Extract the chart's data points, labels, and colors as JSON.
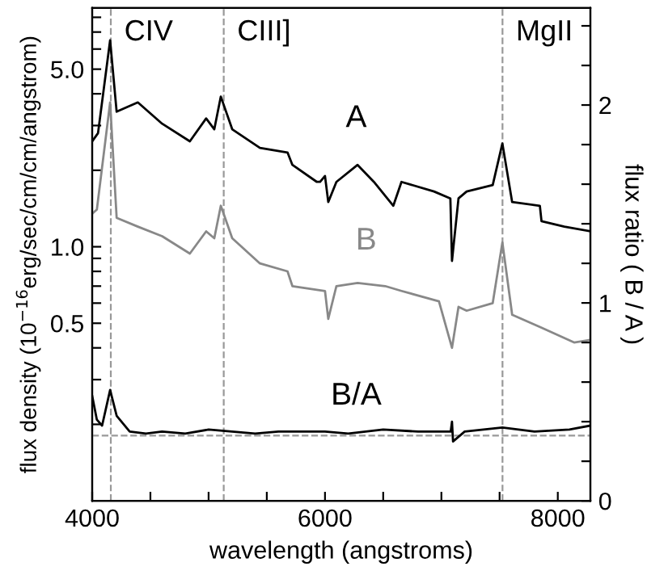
{
  "chart_data": {
    "type": "line",
    "xlabel": "wavelength (angstroms)",
    "ylabel": "flux density (10$^{−16}$erg/sec/cm/cm/angstrom)",
    "y2label": "flux ratio ( B / A )",
    "log": "y",
    "grid": false,
    "legend": false,
    "marker": "none",
    "line_style": "solid",
    "xlim": [
      4000,
      8280
    ],
    "xticks": [
      4000,
      {
        "value": 4500,
        "label": null
      },
      {
        "value": 5000,
        "label": null
      },
      {
        "value": 5500,
        "label": null
      },
      6000,
      {
        "value": 6500,
        "label": null
      },
      {
        "value": 7000,
        "label": null
      },
      {
        "value": 7500,
        "label": null
      },
      8000
    ],
    "ylim": [
      0.1,
      8.7
    ],
    "yticks": [
      {
        "value": 0.2,
        "label": null
      },
      {
        "value": 0.3,
        "label": null
      },
      {
        "value": 0.4,
        "label": null
      },
      {
        "value": 0.5,
        "label": "0.5"
      },
      {
        "value": 0.6,
        "label": null
      },
      {
        "value": 0.7,
        "label": null
      },
      {
        "value": 0.8,
        "label": null
      },
      {
        "value": 0.9,
        "label": null
      },
      {
        "value": 1,
        "label": "1.0"
      },
      {
        "value": 2,
        "label": null
      },
      {
        "value": 3,
        "label": null
      },
      {
        "value": 4,
        "label": null
      },
      {
        "value": 5,
        "label": "5.0"
      },
      {
        "value": 6,
        "label": null
      },
      {
        "value": 7,
        "label": null
      },
      {
        "value": 8,
        "label": null
      }
    ],
    "y2lim": [
      0,
      2.49
    ],
    "y2ticks": [
      0,
      {
        "value": 0.2,
        "label": null
      },
      {
        "value": 0.4,
        "label": null
      },
      {
        "value": 0.6,
        "label": null
      },
      {
        "value": 0.8,
        "label": null
      },
      1,
      {
        "value": 1.2,
        "label": null
      },
      {
        "value": 1.4,
        "label": null
      },
      {
        "value": 1.6,
        "label": null
      },
      {
        "value": 1.8,
        "label": null
      },
      2,
      {
        "value": 2.2,
        "label": null
      },
      {
        "value": 2.4,
        "label": null
      }
    ],
    "series": [
      {
        "name": "A",
        "color": "#000000",
        "x": [
          4000,
          4050,
          4154,
          4210,
          4392,
          4601,
          4839,
          4979,
          5049,
          5105,
          5203,
          5441,
          5678,
          5720,
          5930,
          5958,
          6000,
          6028,
          6098,
          6280,
          6420,
          6587,
          6657,
          6937,
          7077,
          7091,
          7147,
          7217,
          7441,
          7524,
          7608,
          7846,
          7860,
          8056,
          8280
        ],
        "values": [
          2.6,
          2.8,
          6.5,
          3.4,
          3.7,
          3.05,
          2.6,
          3.2,
          2.9,
          3.9,
          2.9,
          2.45,
          2.35,
          2.1,
          1.8,
          1.8,
          1.9,
          1.5,
          1.8,
          2.1,
          1.8,
          1.45,
          1.8,
          1.65,
          1.55,
          0.88,
          1.55,
          1.65,
          1.75,
          2.55,
          1.5,
          1.45,
          1.26,
          1.2,
          1.15
        ]
      },
      {
        "name": "B",
        "color": "#888888",
        "x": [
          4000,
          4040,
          4154,
          4210,
          4392,
          4601,
          4839,
          4979,
          5049,
          5105,
          5203,
          5441,
          5678,
          5720,
          6000,
          6028,
          6098,
          6280,
          6517,
          6657,
          6979,
          7091,
          7147,
          7217,
          7441,
          7524,
          7608,
          7860,
          8140,
          8280
        ],
        "values": [
          1.35,
          1.4,
          3.7,
          1.3,
          1.2,
          1.1,
          0.94,
          1.15,
          1.08,
          1.45,
          1.08,
          0.86,
          0.8,
          0.7,
          0.67,
          0.52,
          0.7,
          0.72,
          0.7,
          0.67,
          0.61,
          0.4,
          0.58,
          0.56,
          0.6,
          1.04,
          0.54,
          0.48,
          0.42,
          0.43
        ]
      },
      {
        "name": "B/A",
        "color": "#000000",
        "axis": "y2",
        "x": [
          4000,
          4040,
          4085,
          4154,
          4210,
          4322,
          4462,
          4600,
          4800,
          5000,
          5200,
          5400,
          5600,
          6000,
          6200,
          6500,
          6800,
          7000,
          7080,
          7091,
          7100,
          7200,
          7524,
          7800,
          8100,
          8280
        ],
        "values": [
          0.53,
          0.41,
          0.38,
          0.56,
          0.43,
          0.35,
          0.34,
          0.35,
          0.34,
          0.36,
          0.35,
          0.34,
          0.35,
          0.35,
          0.34,
          0.36,
          0.35,
          0.35,
          0.35,
          0.4,
          0.3,
          0.35,
          0.37,
          0.35,
          0.36,
          0.38
        ]
      }
    ],
    "ref_lines": [
      {
        "axis": "x",
        "value": 4160,
        "label": "CIV",
        "color": "#999999",
        "line_style": "dashed"
      },
      {
        "axis": "x",
        "value": 5130,
        "label": "CIII]",
        "color": "#999999",
        "line_style": "dashed"
      },
      {
        "axis": "x",
        "value": 7525,
        "label": "MgII",
        "color": "#999999",
        "line_style": "dashed"
      },
      {
        "axis": "y2",
        "value": 0.33,
        "color": "#999999",
        "line_style": "dashed"
      }
    ]
  }
}
